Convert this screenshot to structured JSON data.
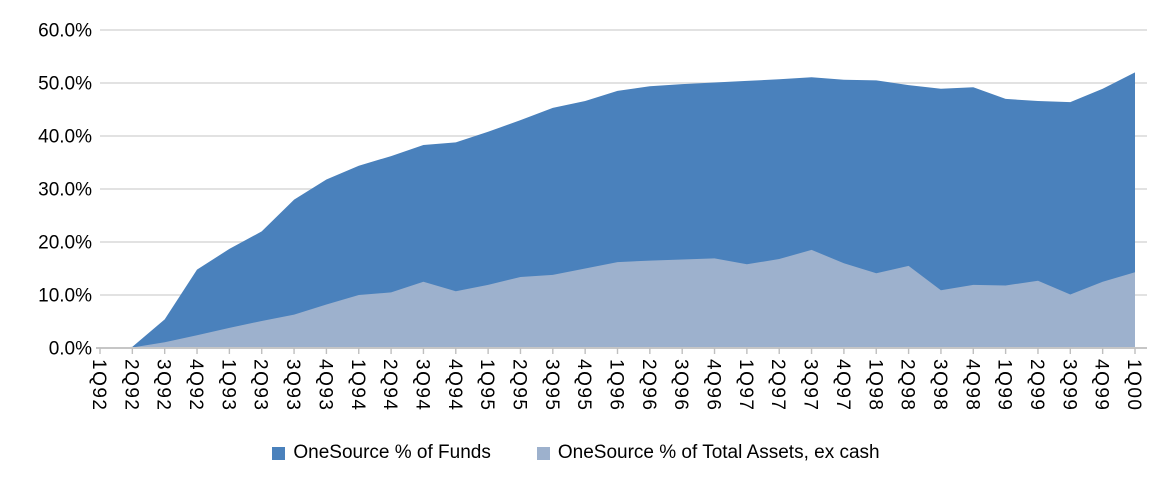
{
  "chart_data": {
    "type": "area",
    "title": "",
    "xlabel": "",
    "ylabel": "",
    "ylim": [
      0,
      60
    ],
    "grid": true,
    "legend_position": "bottom",
    "y_ticks": [
      "0.0%",
      "10.0%",
      "20.0%",
      "30.0%",
      "40.0%",
      "50.0%",
      "60.0%"
    ],
    "categories": [
      "1Q92",
      "2Q92",
      "3Q92",
      "4Q92",
      "1Q93",
      "2Q93",
      "3Q93",
      "4Q93",
      "1Q94",
      "2Q94",
      "3Q94",
      "4Q94",
      "1Q95",
      "2Q95",
      "3Q95",
      "4Q95",
      "1Q96",
      "2Q96",
      "3Q96",
      "4Q96",
      "1Q97",
      "2Q97",
      "3Q97",
      "4Q97",
      "1Q98",
      "2Q98",
      "3Q98",
      "4Q98",
      "1Q99",
      "2Q99",
      "3Q99",
      "4Q99",
      "1Q00"
    ],
    "series": [
      {
        "name": "OneSource % of Funds",
        "color": "#4A81BC",
        "values": [
          0.0,
          0.2,
          5.4,
          14.8,
          18.7,
          22.0,
          28.0,
          31.8,
          34.4,
          36.2,
          38.3,
          38.8,
          40.8,
          43.0,
          45.3,
          46.6,
          48.5,
          49.4,
          49.8,
          50.1,
          50.4,
          50.7,
          51.1,
          50.6,
          50.5,
          49.6,
          48.9,
          49.2,
          47.0,
          46.6,
          46.4,
          48.9,
          52.0
        ]
      },
      {
        "name": "OneSource % of Total Assets, ex cash",
        "color": "#9DB1CD",
        "values": [
          0.0,
          0.1,
          1.1,
          2.4,
          3.8,
          5.1,
          6.3,
          8.2,
          10.0,
          10.5,
          12.5,
          10.7,
          11.9,
          13.4,
          13.8,
          15.0,
          16.2,
          16.5,
          16.7,
          16.9,
          15.8,
          16.8,
          18.5,
          16.0,
          14.1,
          15.5,
          10.9,
          11.9,
          11.8,
          12.7,
          10.1,
          12.5,
          14.3
        ]
      }
    ],
    "colors": {
      "gridline": "#D9D9D9",
      "axis_line": "#C6C6C6",
      "tick": "#BFBFBF",
      "text": "#000000",
      "background": "#FFFFFF"
    }
  },
  "legend": {
    "funds_label": "OneSource % of Funds",
    "assets_label": "OneSource % of Total Assets, ex cash"
  }
}
